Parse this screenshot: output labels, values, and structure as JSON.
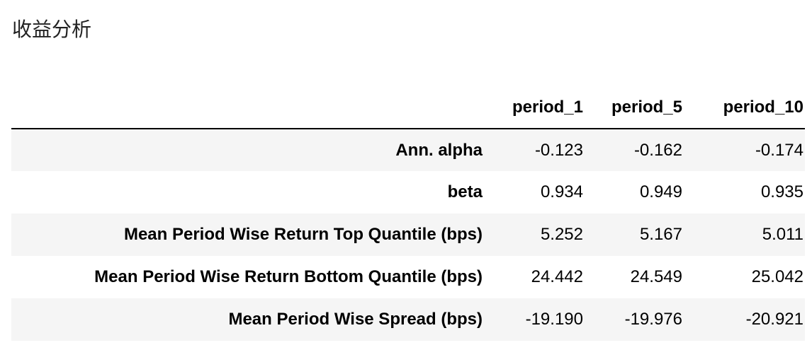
{
  "title": "收益分析",
  "table": {
    "corner": "",
    "columns": [
      "period_1",
      "period_5",
      "period_10"
    ],
    "rows": [
      {
        "label": "Ann. alpha",
        "values": [
          "-0.123",
          "-0.162",
          "-0.174"
        ]
      },
      {
        "label": "beta",
        "values": [
          "0.934",
          "0.949",
          "0.935"
        ]
      },
      {
        "label": "Mean Period Wise Return Top Quantile (bps)",
        "values": [
          "5.252",
          "5.167",
          "5.011"
        ]
      },
      {
        "label": "Mean Period Wise Return Bottom Quantile (bps)",
        "values": [
          "24.442",
          "24.549",
          "25.042"
        ]
      },
      {
        "label": "Mean Period Wise Spread (bps)",
        "values": [
          "-19.190",
          "-19.976",
          "-20.921"
        ]
      }
    ]
  }
}
